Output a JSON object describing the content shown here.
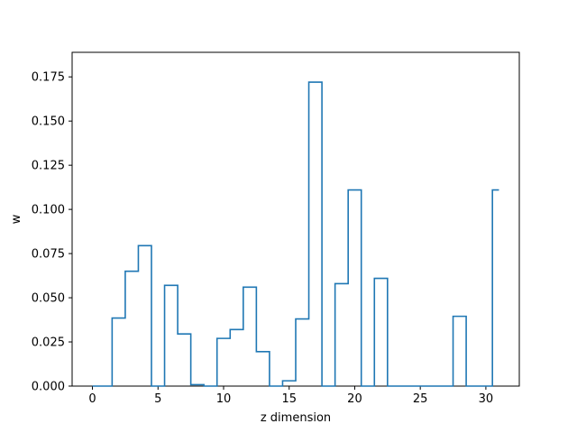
{
  "chart_data": {
    "type": "step",
    "xlabel": "z dimension",
    "ylabel": "w",
    "xlim": [
      -1.55,
      32.55
    ],
    "ylim": [
      0,
      0.1889
    ],
    "xticks": [
      0,
      5,
      10,
      15,
      20,
      25,
      30
    ],
    "xtick_labels": [
      "0",
      "5",
      "10",
      "15",
      "20",
      "25",
      "30"
    ],
    "yticks": [
      0,
      0.025,
      0.05,
      0.075,
      0.1,
      0.125,
      0.15,
      0.175
    ],
    "ytick_labels": [
      "0.000",
      "0.025",
      "0.050",
      "0.075",
      "0.100",
      "0.125",
      "0.150",
      "0.175"
    ],
    "step_where": "mid",
    "line_color": "#1f77b4",
    "grid": false,
    "x": [
      0,
      1,
      2,
      3,
      4,
      5,
      6,
      7,
      8,
      9,
      10,
      11,
      12,
      13,
      14,
      15,
      16,
      17,
      18,
      19,
      20,
      21,
      22,
      23,
      24,
      25,
      26,
      27,
      28,
      29,
      30,
      31
    ],
    "values": [
      0,
      0,
      0.0385,
      0.065,
      0.0795,
      0,
      0.057,
      0.0295,
      0.0008,
      0,
      0.027,
      0.032,
      0.056,
      0.0195,
      0,
      0.003,
      0.038,
      0.172,
      0,
      0.058,
      0.111,
      0,
      0.061,
      0,
      0,
      0,
      0,
      0,
      0.0395,
      0,
      0,
      0.111
    ]
  }
}
